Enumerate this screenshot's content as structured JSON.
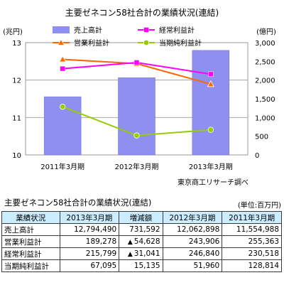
{
  "chart_data": {
    "type": "bar+line",
    "title": "主要ゼネコン58社合計の業績状況(連結)",
    "categories": [
      "2011年3月期",
      "2012年3月期",
      "2013年3月期"
    ],
    "left_axis": {
      "unit": "(兆円)",
      "min": 10,
      "max": 13,
      "ticks": [
        "10",
        "11",
        "12",
        "13"
      ]
    },
    "right_axis": {
      "unit": "(億円)",
      "min": 0,
      "max": 3000,
      "ticks": [
        "0",
        "500",
        "1,000",
        "1,500",
        "2,000",
        "2,500",
        "3,000"
      ]
    },
    "series": [
      {
        "name": "売上高計",
        "kind": "bar",
        "axis": "left",
        "color": "#8f8fef",
        "values": [
          11.555,
          12.063,
          12.794
        ]
      },
      {
        "name": "営業利益計",
        "kind": "line",
        "axis": "right",
        "color": "#ff6600",
        "marker": "triangle",
        "values": [
          2553.63,
          2439.06,
          1892.78
        ]
      },
      {
        "name": "経常利益計",
        "kind": "line",
        "axis": "right",
        "color": "#ff00ff",
        "marker": "square",
        "values": [
          2305.18,
          2468.4,
          2157.99
        ]
      },
      {
        "name": "当期純利益計",
        "kind": "line",
        "axis": "right",
        "color": "#99cc00",
        "marker": "circle",
        "values": [
          1288.14,
          519.6,
          670.95
        ]
      }
    ],
    "legend_position": "top",
    "source_note": "東京商工リサーチ調べ"
  },
  "table": {
    "title": "主要ゼネコン58社合計の業績状況(連結)",
    "unit": "(単位:百万円)",
    "headers": [
      "業績状況",
      "2013年3月期",
      "増減額",
      "2012年3月期",
      "2011年3月期"
    ],
    "rows": [
      {
        "label": "売上高計",
        "v2013": "12,794,490",
        "mark": "",
        "diff": "731,592",
        "v2012": "12,062,898",
        "v2011": "11,554,988"
      },
      {
        "label": "営業利益計",
        "v2013": "189,278",
        "mark": "▲",
        "diff": "54,628",
        "v2012": "243,906",
        "v2011": "255,363"
      },
      {
        "label": "経常利益計",
        "v2013": "215,799",
        "mark": "▲",
        "diff": "31,041",
        "v2012": "246,840",
        "v2011": "230,518"
      },
      {
        "label": "当期純利益計",
        "v2013": "67,095",
        "mark": "",
        "diff": "15,135",
        "v2012": "51,960",
        "v2011": "128,814"
      }
    ]
  }
}
